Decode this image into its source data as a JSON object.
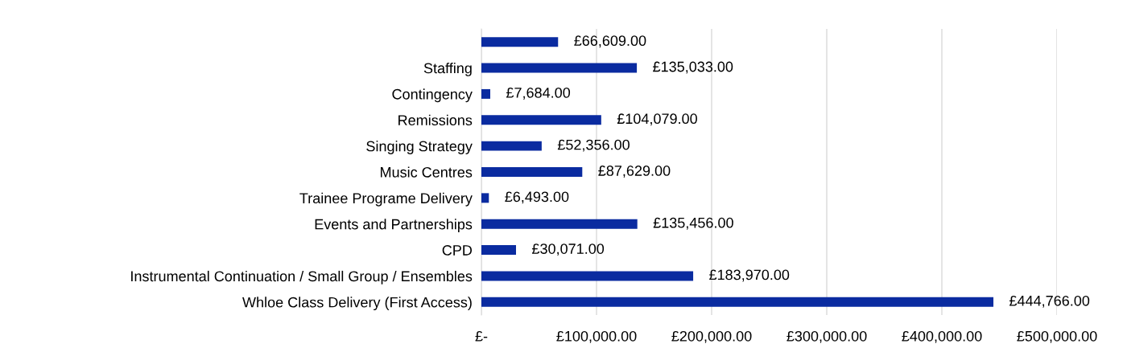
{
  "chart_data": {
    "type": "bar",
    "orientation": "horizontal",
    "categories": [
      null,
      "Staffing",
      "Contingency",
      "Remissions",
      "Singing Strategy",
      "Music Centres",
      "Trainee Programe Delivery",
      "Events and Partnerships",
      "CPD",
      "Instrumental Continuation / Small Group / Ensembles",
      "Whloe Class Delivery (First Access)"
    ],
    "values": [
      66609,
      135033,
      7684,
      104079,
      52356,
      87629,
      6493,
      135456,
      30071,
      183970,
      444766
    ],
    "value_labels": [
      "£66,609.00",
      "£135,033.00",
      "£7,684.00",
      "£104,079.00",
      "£52,356.00",
      "£87,629.00",
      "£6,493.00",
      "£135,456.00",
      "£30,071.00",
      "£183,970.00",
      "£444,766.00"
    ],
    "color": "#0a2ba0",
    "xlim": [
      0,
      500000
    ],
    "xticks": [
      {
        "value": 0,
        "label": "£-"
      },
      {
        "value": 100000,
        "label": "£100,000.00"
      },
      {
        "value": 200000,
        "label": "£200,000.00"
      },
      {
        "value": 300000,
        "label": "£300,000.00"
      },
      {
        "value": 400000,
        "label": "£400,000.00"
      },
      {
        "value": 500000,
        "label": "£500,000.00"
      }
    ],
    "grid": "x",
    "legend": false
  }
}
